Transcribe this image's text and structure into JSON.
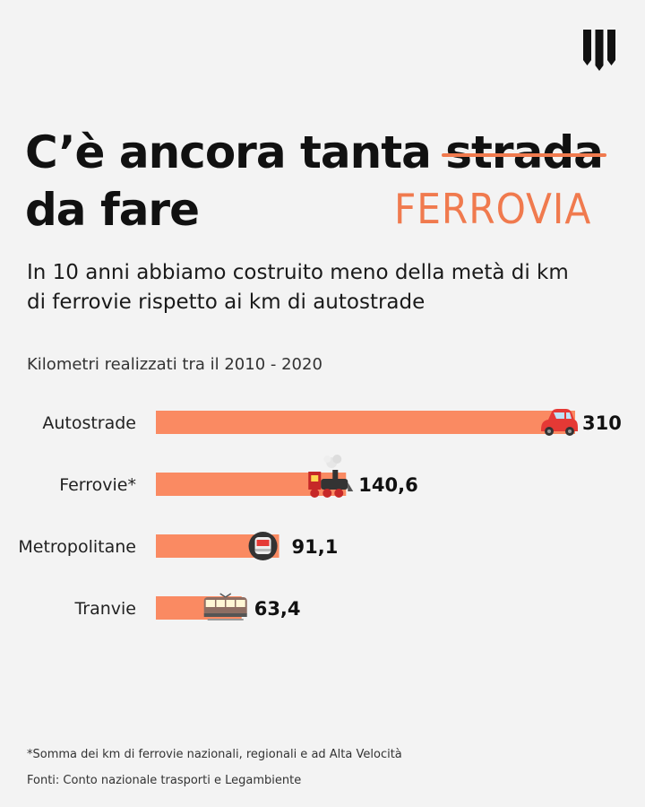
{
  "header": {
    "logo_icon": "brand-logo-icon",
    "title_part1": "C’è ancora tanta ",
    "title_struck_word": "strada",
    "title_line2": "da fare",
    "replacement_word": "FERROVIA",
    "accent_color": "#f07a4e"
  },
  "subtitle": "In 10 anni abbiamo costruito meno della metà di km di ferrovie rispetto ai km di autostrade",
  "chart_caption": "Kilometri realizzati tra il 2010 - 2020",
  "chart_data": {
    "type": "bar",
    "orientation": "horizontal",
    "title": "Kilometri realizzati tra il 2010 - 2020",
    "categories": [
      "Autostrade",
      "Ferrovie*",
      "Metropolitane",
      "Tranvie"
    ],
    "values": [
      310,
      140.6,
      91.1,
      63.4
    ],
    "value_labels": [
      "310",
      "140,6",
      "91,1",
      "63,4"
    ],
    "icons": [
      "car-icon",
      "locomotive-icon",
      "metro-icon",
      "tram-icon"
    ],
    "bar_color": "#fa8a62",
    "xlim": [
      0,
      310
    ],
    "grid": false,
    "legend": "none"
  },
  "footnote": "*Somma dei km di ferrovie nazionali, regionali e ad Alta Velocità",
  "sources": "Fonti: Conto nazionale trasporti e Legambiente"
}
